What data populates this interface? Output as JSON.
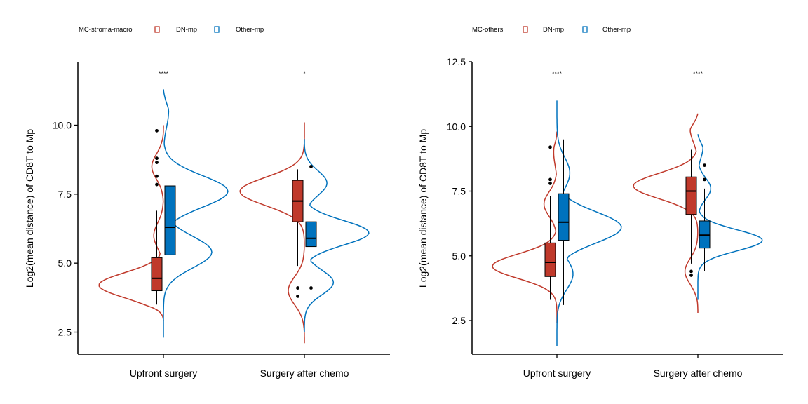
{
  "colors": {
    "dn": "#c0392b",
    "other": "#0072bd",
    "axis": "#000000"
  },
  "chart_data": [
    {
      "type": "split-violin-box",
      "legend_title": "MC-stroma-macro",
      "legend_position": "top-left",
      "series": [
        {
          "name": "DN-mp"
        },
        {
          "name": "Other-mp"
        }
      ],
      "ylabel": "Log2(mean distance) of CD8T to Mp",
      "xlabel": "",
      "ylim": [
        1.7,
        12.3
      ],
      "yticks": [
        "2.5",
        "5.0",
        "7.5",
        "10.0"
      ],
      "categories": [
        "Upfront surgery",
        "Surgery after chemo"
      ],
      "significance": [
        "****",
        "*"
      ],
      "groups": [
        {
          "category": "Upfront surgery",
          "dn": {
            "box": {
              "wlo": 3.5,
              "q1": 4.0,
              "median": 4.45,
              "q3": 5.2,
              "whi": 6.9
            },
            "outliers": [
              9.8,
              8.8,
              8.65,
              8.15,
              7.85
            ],
            "violin": {
              "range": [
                2.9,
                10.0
              ],
              "peaks": [
                [
                  4.2,
                  1.0
                ],
                [
                  6.0,
                  0.15
                ],
                [
                  8.5,
                  0.18
                ]
              ]
            }
          },
          "other": {
            "box": {
              "wlo": 4.1,
              "q1": 5.3,
              "median": 6.3,
              "q3": 7.8,
              "whi": 9.5
            },
            "outliers": [],
            "violin": {
              "range": [
                2.3,
                11.3
              ],
              "peaks": [
                [
                  5.4,
                  0.75
                ],
                [
                  7.6,
                  1.0
                ],
                [
                  10.5,
                  0.08
                ]
              ]
            }
          }
        },
        {
          "category": "Surgery after chemo",
          "dn": {
            "box": {
              "wlo": 4.9,
              "q1": 6.5,
              "median": 7.25,
              "q3": 8.0,
              "whi": 8.4
            },
            "outliers": [
              4.1,
              3.8
            ],
            "violin": {
              "range": [
                2.1,
                10.1
              ],
              "peaks": [
                [
                  4.0,
                  0.25
                ],
                [
                  7.6,
                  1.0
                ]
              ]
            }
          },
          "other": {
            "box": {
              "wlo": 4.5,
              "q1": 5.6,
              "median": 5.9,
              "q3": 6.5,
              "whi": 7.7
            },
            "outliers": [
              8.5,
              4.1
            ],
            "violin": {
              "range": [
                2.5,
                9.5
              ],
              "peaks": [
                [
                  4.3,
                  0.45
                ],
                [
                  6.1,
                  1.0
                ],
                [
                  7.9,
                  0.35
                ]
              ]
            }
          }
        }
      ]
    },
    {
      "type": "split-violin-box",
      "legend_title": "MC-others",
      "legend_position": "top-left",
      "series": [
        {
          "name": "DN-mp"
        },
        {
          "name": "Other-mp"
        }
      ],
      "ylabel": "Log2(mean distance) of CD8T to Mp",
      "xlabel": "",
      "ylim": [
        1.2,
        12.5
      ],
      "yticks": [
        "2.5",
        "5.0",
        "7.5",
        "10.0",
        "12.5"
      ],
      "categories": [
        "Upfront surgery",
        "Surgery after chemo"
      ],
      "significance": [
        "****",
        "****"
      ],
      "groups": [
        {
          "category": "Upfront surgery",
          "dn": {
            "box": {
              "wlo": 3.3,
              "q1": 4.2,
              "median": 4.75,
              "q3": 5.5,
              "whi": 7.3
            },
            "outliers": [
              9.2,
              7.95,
              7.8
            ],
            "violin": {
              "range": [
                2.4,
                9.8
              ],
              "peaks": [
                [
                  4.6,
                  1.0
                ],
                [
                  7.0,
                  0.2
                ],
                [
                  9.0,
                  0.05
                ]
              ]
            }
          },
          "other": {
            "box": {
              "wlo": 3.1,
              "q1": 5.6,
              "median": 6.3,
              "q3": 7.4,
              "whi": 9.5
            },
            "outliers": [],
            "violin": {
              "range": [
                1.5,
                11.0
              ],
              "peaks": [
                [
                  4.3,
                  0.25
                ],
                [
                  6.1,
                  1.0
                ],
                [
                  8.2,
                  0.2
                ]
              ]
            }
          }
        },
        {
          "category": "Surgery after chemo",
          "dn": {
            "box": {
              "wlo": 4.7,
              "q1": 6.6,
              "median": 7.5,
              "q3": 8.05,
              "whi": 9.1
            },
            "outliers": [
              4.4,
              4.25
            ],
            "violin": {
              "range": [
                2.8,
                10.5
              ],
              "peaks": [
                [
                  4.4,
                  0.2
                ],
                [
                  7.7,
                  1.0
                ],
                [
                  9.9,
                  0.12
                ]
              ]
            }
          },
          "other": {
            "box": {
              "wlo": 4.4,
              "q1": 5.3,
              "median": 5.8,
              "q3": 6.35,
              "whi": 7.6
            },
            "outliers": [
              8.5,
              7.95
            ],
            "violin": {
              "range": [
                3.3,
                9.7
              ],
              "peaks": [
                [
                  5.6,
                  1.0
                ],
                [
                  7.6,
                  0.2
                ],
                [
                  9.2,
                  0.08
                ]
              ]
            }
          }
        }
      ]
    }
  ]
}
